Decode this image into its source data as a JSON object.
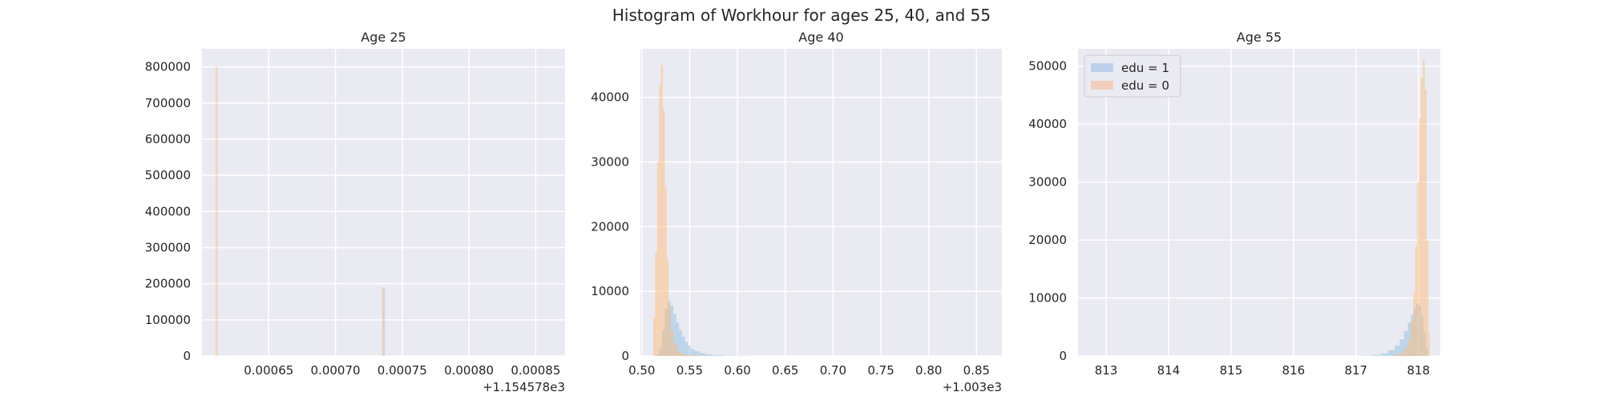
{
  "figure": {
    "suptitle": "Histogram of Workhour for ages 25, 40, and 55"
  },
  "chart_data": [
    {
      "type": "histogram",
      "title": "Age 25",
      "xlabel": "",
      "ylabel": "",
      "grid": true,
      "x_offset_label": "+1.154578e3",
      "xlim": [
        0.0006,
        0.000872
      ],
      "ylim": [
        0,
        850000
      ],
      "x_ticks": [
        0.00065,
        0.0007,
        0.00075,
        0.0008,
        0.00085
      ],
      "x_tick_labels": [
        "0.00065",
        "0.00070",
        "0.00075",
        "0.00080",
        "0.00085"
      ],
      "y_ticks": [
        0,
        100000,
        200000,
        300000,
        400000,
        500000,
        600000,
        700000,
        800000
      ],
      "y_tick_labels": [
        "0",
        "100000",
        "200000",
        "300000",
        "400000",
        "500000",
        "600000",
        "700000",
        "800000"
      ],
      "series": [
        {
          "color": "#aec7e8",
          "alpha": 0.35,
          "bins": [
            {
              "x0": 0.000735,
              "x1": 0.000737,
              "count": 190000
            }
          ]
        },
        {
          "color": "#ffbb78",
          "alpha": 0.35,
          "bins": [
            {
              "x0": 0.00061,
              "x1": 0.000612,
              "count": 800000
            },
            {
              "x0": 0.000735,
              "x1": 0.000737,
              "count": 185000
            }
          ]
        }
      ]
    },
    {
      "type": "histogram",
      "title": "Age 40",
      "xlabel": "",
      "ylabel": "",
      "grid": true,
      "x_offset_label": "+1.003e3",
      "xlim": [
        0.4985,
        0.8765
      ],
      "ylim": [
        0,
        47500
      ],
      "x_ticks": [
        0.5,
        0.55,
        0.6,
        0.65,
        0.7,
        0.75,
        0.8,
        0.85
      ],
      "x_tick_labels": [
        "0.50",
        "0.55",
        "0.60",
        "0.65",
        "0.70",
        "0.75",
        "0.80",
        "0.85"
      ],
      "y_ticks": [
        0,
        10000,
        20000,
        30000,
        40000
      ],
      "y_tick_labels": [
        "0",
        "10000",
        "20000",
        "30000",
        "40000"
      ],
      "series": [
        {
          "color": "#6baed6",
          "alpha": 0.35,
          "bins": [
            {
              "x0": 0.515,
              "x1": 0.518,
              "count": 200
            },
            {
              "x0": 0.518,
              "x1": 0.521,
              "count": 1200
            },
            {
              "x0": 0.521,
              "x1": 0.524,
              "count": 4000
            },
            {
              "x0": 0.524,
              "x1": 0.527,
              "count": 7300
            },
            {
              "x0": 0.527,
              "x1": 0.53,
              "count": 8500
            },
            {
              "x0": 0.53,
              "x1": 0.533,
              "count": 7800
            },
            {
              "x0": 0.533,
              "x1": 0.536,
              "count": 6500
            },
            {
              "x0": 0.536,
              "x1": 0.539,
              "count": 5200
            },
            {
              "x0": 0.539,
              "x1": 0.542,
              "count": 4000
            },
            {
              "x0": 0.542,
              "x1": 0.545,
              "count": 3000
            },
            {
              "x0": 0.545,
              "x1": 0.548,
              "count": 2200
            },
            {
              "x0": 0.548,
              "x1": 0.551,
              "count": 1600
            },
            {
              "x0": 0.551,
              "x1": 0.555,
              "count": 1100
            },
            {
              "x0": 0.555,
              "x1": 0.56,
              "count": 750
            },
            {
              "x0": 0.56,
              "x1": 0.566,
              "count": 480
            },
            {
              "x0": 0.566,
              "x1": 0.574,
              "count": 280
            },
            {
              "x0": 0.574,
              "x1": 0.585,
              "count": 140
            },
            {
              "x0": 0.585,
              "x1": 0.6,
              "count": 60
            },
            {
              "x0": 0.6,
              "x1": 0.62,
              "count": 25
            },
            {
              "x0": 0.62,
              "x1": 0.65,
              "count": 8
            }
          ]
        },
        {
          "color": "#ffbb78",
          "alpha": 0.5,
          "bins": [
            {
              "x0": 0.512,
              "x1": 0.514,
              "count": 6000
            },
            {
              "x0": 0.514,
              "x1": 0.516,
              "count": 16000
            },
            {
              "x0": 0.516,
              "x1": 0.518,
              "count": 30000
            },
            {
              "x0": 0.518,
              "x1": 0.52,
              "count": 42000
            },
            {
              "x0": 0.52,
              "x1": 0.522,
              "count": 45000
            },
            {
              "x0": 0.522,
              "x1": 0.524,
              "count": 38000
            },
            {
              "x0": 0.524,
              "x1": 0.526,
              "count": 26000
            },
            {
              "x0": 0.526,
              "x1": 0.528,
              "count": 15000
            },
            {
              "x0": 0.528,
              "x1": 0.53,
              "count": 8000
            },
            {
              "x0": 0.53,
              "x1": 0.533,
              "count": 4000
            },
            {
              "x0": 0.533,
              "x1": 0.537,
              "count": 1800
            },
            {
              "x0": 0.537,
              "x1": 0.542,
              "count": 700
            },
            {
              "x0": 0.542,
              "x1": 0.55,
              "count": 250
            },
            {
              "x0": 0.55,
              "x1": 0.56,
              "count": 80
            }
          ]
        }
      ]
    },
    {
      "type": "histogram",
      "title": "Age 55",
      "xlabel": "",
      "ylabel": "",
      "grid": true,
      "xlim": [
        812.55,
        818.35
      ],
      "ylim": [
        0,
        53000
      ],
      "x_ticks": [
        813,
        814,
        815,
        816,
        817,
        818
      ],
      "x_tick_labels": [
        "813",
        "814",
        "815",
        "816",
        "817",
        "818"
      ],
      "y_ticks": [
        0,
        10000,
        20000,
        30000,
        40000,
        50000
      ],
      "y_tick_labels": [
        "0",
        "10000",
        "20000",
        "30000",
        "40000",
        "50000"
      ],
      "legend": {
        "position": "upper left",
        "entries": [
          {
            "label": "edu = 1",
            "color": "#aec7e8"
          },
          {
            "label": "edu = 0",
            "color": "#f5c6a8"
          }
        ]
      },
      "series": [
        {
          "name": "edu = 1",
          "color": "#6baed6",
          "alpha": 0.35,
          "bins": [
            {
              "x0": 817.1,
              "x1": 817.25,
              "count": 60
            },
            {
              "x0": 817.25,
              "x1": 817.4,
              "count": 180
            },
            {
              "x0": 817.4,
              "x1": 817.52,
              "count": 450
            },
            {
              "x0": 817.52,
              "x1": 817.62,
              "count": 1000
            },
            {
              "x0": 817.62,
              "x1": 817.7,
              "count": 1800
            },
            {
              "x0": 817.7,
              "x1": 817.77,
              "count": 2900
            },
            {
              "x0": 817.77,
              "x1": 817.83,
              "count": 4300
            },
            {
              "x0": 817.83,
              "x1": 817.88,
              "count": 5800
            },
            {
              "x0": 817.88,
              "x1": 817.92,
              "count": 7100
            },
            {
              "x0": 817.92,
              "x1": 817.96,
              "count": 8200
            },
            {
              "x0": 817.96,
              "x1": 818.0,
              "count": 9000
            },
            {
              "x0": 818.0,
              "x1": 818.04,
              "count": 8700
            },
            {
              "x0": 818.04,
              "x1": 818.08,
              "count": 7000
            },
            {
              "x0": 818.08,
              "x1": 818.12,
              "count": 4000
            },
            {
              "x0": 818.12,
              "x1": 818.16,
              "count": 1200
            }
          ]
        },
        {
          "name": "edu = 0",
          "color": "#ffbb78",
          "alpha": 0.5,
          "bins": [
            {
              "x0": 817.6,
              "x1": 817.7,
              "count": 200
            },
            {
              "x0": 817.7,
              "x1": 817.78,
              "count": 600
            },
            {
              "x0": 817.78,
              "x1": 817.84,
              "count": 1500
            },
            {
              "x0": 817.84,
              "x1": 817.88,
              "count": 3000
            },
            {
              "x0": 817.88,
              "x1": 817.92,
              "count": 6000
            },
            {
              "x0": 817.92,
              "x1": 817.95,
              "count": 11000
            },
            {
              "x0": 817.95,
              "x1": 817.98,
              "count": 19000
            },
            {
              "x0": 817.98,
              "x1": 818.01,
              "count": 30000
            },
            {
              "x0": 818.01,
              "x1": 818.04,
              "count": 41000
            },
            {
              "x0": 818.04,
              "x1": 818.07,
              "count": 48000
            },
            {
              "x0": 818.07,
              "x1": 818.1,
              "count": 51000
            },
            {
              "x0": 818.1,
              "x1": 818.13,
              "count": 46000
            },
            {
              "x0": 818.13,
              "x1": 818.16,
              "count": 20000
            },
            {
              "x0": 818.16,
              "x1": 818.18,
              "count": 4000
            }
          ]
        }
      ]
    }
  ]
}
